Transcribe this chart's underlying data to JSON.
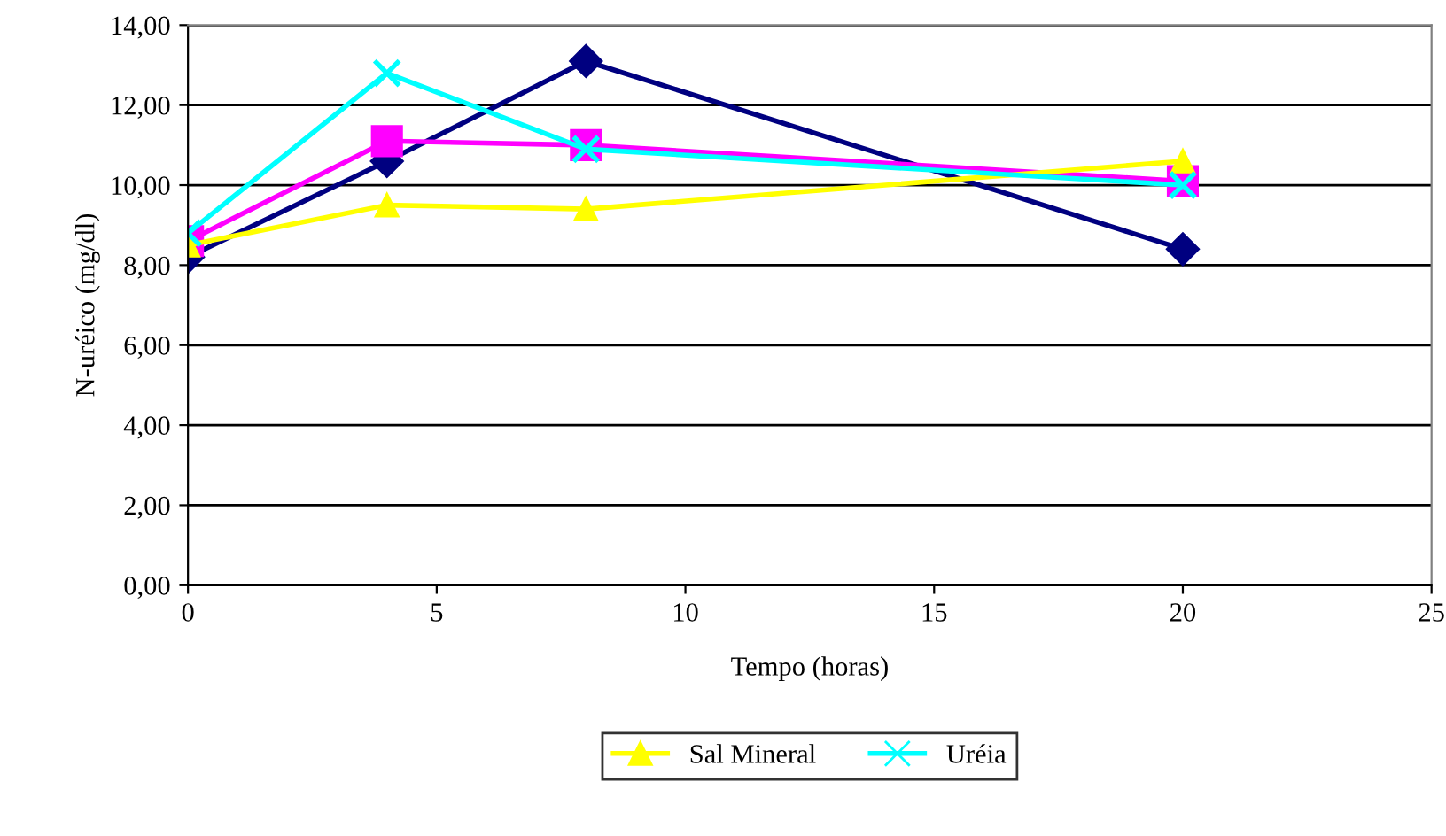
{
  "chart_data": {
    "type": "line",
    "xlabel": "Tempo (horas)",
    "ylabel": "N-uréico (mg/dl)",
    "x": [
      0,
      4,
      8,
      20
    ],
    "series": [
      {
        "color": "#000080",
        "marker": "diamond",
        "values": [
          8.2,
          10.6,
          13.1,
          8.4
        ]
      },
      {
        "color": "#ff00ff",
        "marker": "square",
        "values": [
          8.6,
          11.1,
          11.0,
          10.1
        ]
      },
      {
        "name": "Sal Mineral",
        "color": "#ffff00",
        "marker": "triangle",
        "values": [
          8.5,
          9.5,
          9.4,
          10.6
        ]
      },
      {
        "name": "Uréia",
        "color": "#00ffff",
        "marker": "cross",
        "values": [
          8.8,
          12.8,
          10.9,
          10.0
        ]
      }
    ],
    "xlim": [
      0,
      25
    ],
    "xticks": [
      0,
      5,
      10,
      15,
      20,
      25
    ],
    "ylim": [
      0,
      14
    ],
    "yticks": [
      {
        "value": 0,
        "label": "0,00"
      },
      {
        "value": 2,
        "label": "2,00"
      },
      {
        "value": 4,
        "label": "4,00"
      },
      {
        "value": 6,
        "label": "6,00"
      },
      {
        "value": 8,
        "label": "8,00"
      },
      {
        "value": 10,
        "label": "10,00"
      },
      {
        "value": 12,
        "label": "12,00"
      },
      {
        "value": 14,
        "label": "14,00"
      }
    ],
    "grid": "y",
    "legend": "bottom",
    "line_style": "solid"
  }
}
